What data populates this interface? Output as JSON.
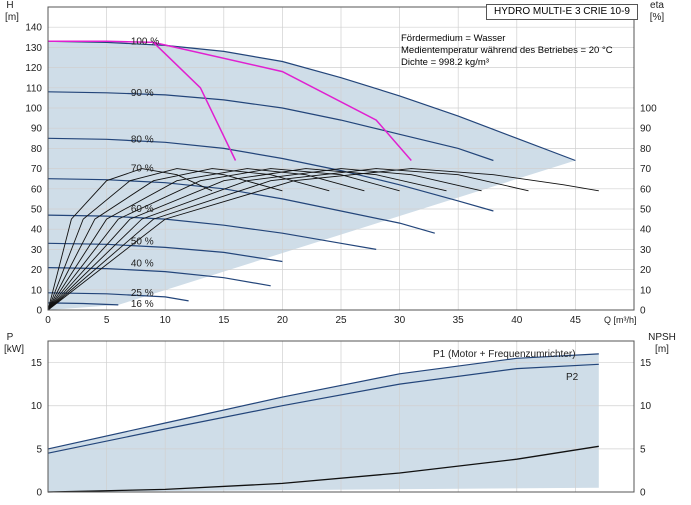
{
  "chart_data": [
    {
      "type": "line",
      "title": "HYDRO MULTI-E 3 CRIE 10-9",
      "ylabel": "H",
      "yunit": "[m]",
      "y2label": "eta",
      "y2unit": "[%]",
      "xlabel": "Q [m³/h]",
      "xlim": [
        0,
        50
      ],
      "ylim": [
        0,
        150
      ],
      "x_ticks": [
        0,
        5,
        10,
        15,
        20,
        25,
        30,
        35,
        40,
        45
      ],
      "y_ticks": [
        0,
        10,
        20,
        30,
        40,
        50,
        60,
        70,
        80,
        90,
        100,
        110,
        120,
        130,
        140
      ],
      "y2_ticks": [
        0,
        10,
        20,
        30,
        40,
        50,
        60,
        70,
        80,
        90,
        100
      ],
      "grid": true,
      "info_text": [
        "Fördermedium = Wasser",
        "Medientemperatur während des Betriebes = 20 °C",
        "Dichte = 998.2 kg/m³"
      ],
      "speed_labels": [
        {
          "text": "100 %",
          "x": 2.8,
          "y": 134
        },
        {
          "text": "90 %",
          "x": 2.8,
          "y": 108.5
        },
        {
          "text": "80 %",
          "x": 2.8,
          "y": 85.5
        },
        {
          "text": "70 %",
          "x": 2.8,
          "y": 71
        },
        {
          "text": "60 %",
          "x": 2.8,
          "y": 51
        },
        {
          "text": "50 %",
          "x": 2.8,
          "y": 35
        },
        {
          "text": "40 %",
          "x": 2.8,
          "y": 24
        },
        {
          "text": "25 %",
          "x": 2.8,
          "y": 9.5
        },
        {
          "text": "16 %",
          "x": 2.8,
          "y": 4
        }
      ],
      "series": [
        {
          "values": [
            [
              0,
              133
            ],
            [
              5,
              132.5
            ],
            [
              10,
              131
            ],
            [
              15,
              128
            ],
            [
              20,
              123
            ],
            [
              25,
              115
            ],
            [
              30,
              106
            ],
            [
              35,
              96
            ],
            [
              40,
              85
            ],
            [
              45,
              74
            ]
          ]
        },
        {
          "values": [
            [
              0,
              108
            ],
            [
              5,
              107.5
            ],
            [
              10,
              106.5
            ],
            [
              15,
              104
            ],
            [
              20,
              100
            ],
            [
              25,
              94
            ],
            [
              30,
              87
            ],
            [
              35,
              80
            ],
            [
              38,
              74
            ]
          ]
        },
        {
          "values": [
            [
              0,
              85
            ],
            [
              5,
              84.5
            ],
            [
              10,
              83
            ],
            [
              15,
              80
            ],
            [
              20,
              75
            ],
            [
              25,
              69
            ],
            [
              30,
              62
            ],
            [
              35,
              54
            ],
            [
              38,
              49
            ]
          ]
        },
        {
          "values": [
            [
              0,
              65
            ],
            [
              5,
              64.5
            ],
            [
              10,
              63
            ],
            [
              15,
              60
            ],
            [
              20,
              55
            ],
            [
              25,
              49
            ],
            [
              30,
              43
            ],
            [
              33,
              38
            ]
          ]
        },
        {
          "values": [
            [
              0,
              47
            ],
            [
              5,
              46.5
            ],
            [
              10,
              45
            ],
            [
              15,
              42
            ],
            [
              20,
              38
            ],
            [
              25,
              33
            ],
            [
              28,
              30
            ]
          ]
        },
        {
          "values": [
            [
              0,
              33
            ],
            [
              5,
              32.5
            ],
            [
              10,
              31
            ],
            [
              15,
              28.5
            ],
            [
              20,
              24
            ]
          ]
        },
        {
          "values": [
            [
              0,
              21
            ],
            [
              5,
              20.5
            ],
            [
              10,
              19
            ],
            [
              15,
              16
            ],
            [
              19,
              12
            ]
          ]
        },
        {
          "values": [
            [
              0,
              8.5
            ],
            [
              5,
              8
            ],
            [
              10,
              6.5
            ],
            [
              12,
              4.5
            ]
          ]
        },
        {
          "values": [
            [
              0,
              3.5
            ],
            [
              3,
              3.2
            ],
            [
              6,
              2.5
            ]
          ]
        }
      ],
      "efficiency_curves": [
        {
          "values": [
            [
              0,
              0
            ],
            [
              2,
              45
            ],
            [
              5,
              64
            ],
            [
              8,
              70
            ],
            [
              11,
              67
            ],
            [
              14,
              59
            ]
          ]
        },
        {
          "values": [
            [
              0,
              0
            ],
            [
              3,
              45
            ],
            [
              7,
              64
            ],
            [
              11,
              70
            ],
            [
              15,
              67
            ],
            [
              20,
              59
            ]
          ]
        },
        {
          "values": [
            [
              0,
              0
            ],
            [
              4,
              45
            ],
            [
              9,
              64
            ],
            [
              14,
              70
            ],
            [
              19,
              67
            ],
            [
              24,
              59
            ]
          ]
        },
        {
          "values": [
            [
              0,
              0
            ],
            [
              5,
              45
            ],
            [
              11,
              64
            ],
            [
              17,
              70
            ],
            [
              22,
              67
            ],
            [
              27,
              59
            ]
          ]
        },
        {
          "values": [
            [
              0,
              0
            ],
            [
              6,
              45
            ],
            [
              13,
              64
            ],
            [
              19,
              70
            ],
            [
              25,
              67
            ],
            [
              30,
              59
            ]
          ]
        },
        {
          "values": [
            [
              0,
              0
            ],
            [
              7,
              45
            ],
            [
              15,
              64
            ],
            [
              22,
              70
            ],
            [
              28,
              67
            ],
            [
              34,
              59
            ]
          ]
        },
        {
          "values": [
            [
              0,
              0
            ],
            [
              8,
              45
            ],
            [
              17,
              64
            ],
            [
              25,
              70
            ],
            [
              31,
              67
            ],
            [
              37,
              59
            ]
          ]
        },
        {
          "values": [
            [
              0,
              0
            ],
            [
              9,
              45
            ],
            [
              19,
              64
            ],
            [
              28,
              70
            ],
            [
              35,
              67
            ],
            [
              41,
              59
            ]
          ]
        },
        {
          "values": [
            [
              0,
              0
            ],
            [
              10,
              45
            ],
            [
              21,
              64
            ],
            [
              31,
              70
            ],
            [
              38,
              67
            ],
            [
              44,
              62
            ],
            [
              47,
              59
            ]
          ]
        }
      ],
      "bep_lines": [
        {
          "values": [
            [
              0,
              133
            ],
            [
              5,
              133
            ],
            [
              9,
              132.5
            ],
            [
              13,
              110
            ],
            [
              16,
              74
            ]
          ]
        },
        {
          "values": [
            [
              9,
              132.5
            ],
            [
              20,
              118
            ],
            [
              28,
              94
            ],
            [
              31,
              74
            ]
          ]
        }
      ]
    },
    {
      "type": "line",
      "ylabel": "P",
      "yunit": "[kW]",
      "y2label": "NPSH",
      "y2unit": "[m]",
      "xlim": [
        0,
        50
      ],
      "ylim": [
        0,
        17.5
      ],
      "y_ticks": [
        0,
        5,
        10,
        15
      ],
      "y2_ticks": [
        0,
        5,
        10,
        15
      ],
      "grid": true,
      "series": [
        {
          "name": "P1 (Motor + Frequenzumrichter)",
          "values": [
            [
              0,
              5
            ],
            [
              10,
              8
            ],
            [
              20,
              11
            ],
            [
              30,
              13.7
            ],
            [
              40,
              15.5
            ],
            [
              47,
              16
            ]
          ]
        },
        {
          "name": "P2",
          "values": [
            [
              0,
              4.5
            ],
            [
              10,
              7.3
            ],
            [
              20,
              10
            ],
            [
              30,
              12.5
            ],
            [
              40,
              14.3
            ],
            [
              47,
              14.8
            ]
          ]
        }
      ],
      "npsh": {
        "values": [
          [
            0,
            0
          ],
          [
            10,
            0.3
          ],
          [
            20,
            1
          ],
          [
            30,
            2.2
          ],
          [
            40,
            3.8
          ],
          [
            47,
            5.3
          ]
        ]
      }
    }
  ]
}
